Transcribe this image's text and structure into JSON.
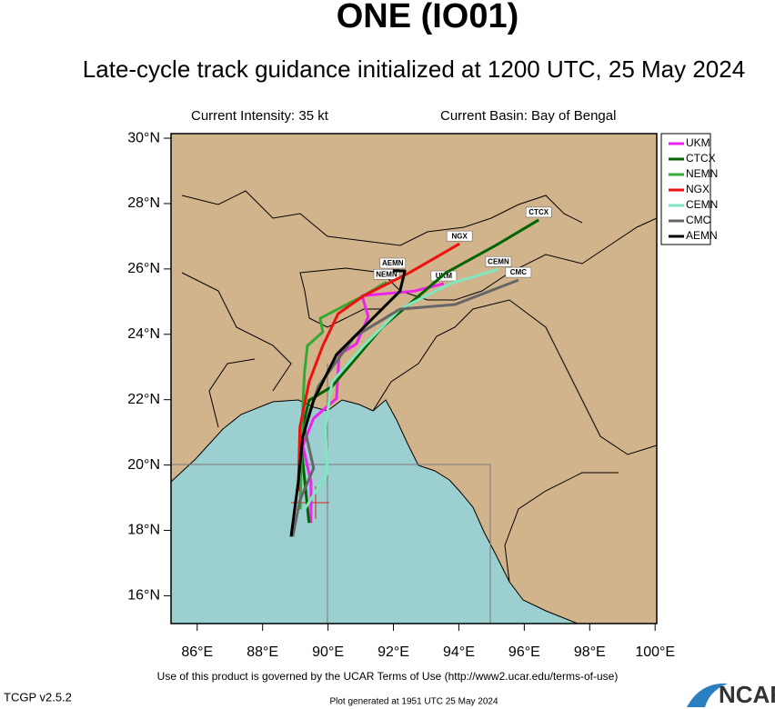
{
  "chart_data": {
    "type": "track",
    "title": "ONE (IO01)",
    "subtitle": "Late-cycle track guidance initialized at 1200 UTC, 25 May 2024",
    "intensity": "Current Intensity: 35 kt",
    "basin": "Current Basin: Bay of Bengal",
    "xlim": [
      85.2,
      100.05
    ],
    "ylim": [
      15.15,
      30.14
    ],
    "xticks": [
      {
        "value": 86,
        "label": "86°E"
      },
      {
        "value": 88,
        "label": "88°E"
      },
      {
        "value": 90,
        "label": "90°E"
      },
      {
        "value": 92,
        "label": "92°E"
      },
      {
        "value": 94,
        "label": "94°E"
      },
      {
        "value": 96,
        "label": "96°E"
      },
      {
        "value": 98,
        "label": "98°E"
      },
      {
        "value": 100,
        "label": "100°E"
      }
    ],
    "yticks": [
      {
        "value": 16,
        "label": "16°N"
      },
      {
        "value": 18,
        "label": "18°N"
      },
      {
        "value": 20,
        "label": "20°N"
      },
      {
        "value": 22,
        "label": "22°N"
      },
      {
        "value": 24,
        "label": "24°N"
      },
      {
        "value": 26,
        "label": "26°N"
      },
      {
        "value": 28,
        "label": "28°N"
      },
      {
        "value": 30,
        "label": "30°N"
      }
    ],
    "series": [
      {
        "name": "UKM",
        "color": "#ee22ee",
        "x": [
          89.48,
          89.48,
          89.23,
          89.56,
          90.26,
          90.34,
          90.87,
          91.23,
          91.04,
          92.62,
          93.54
        ],
        "values": [
          18.23,
          19.48,
          20.6,
          21.43,
          22.04,
          23.38,
          23.71,
          24.54,
          25.18,
          25.32,
          25.55
        ]
      },
      {
        "name": "CTCX",
        "color": "#006400",
        "x": [
          89.42,
          89.15,
          89.42,
          90.12,
          91.65,
          93.6,
          95.13,
          96.44
        ],
        "values": [
          18.23,
          20.87,
          21.98,
          22.4,
          24.21,
          25.88,
          26.72,
          27.5
        ]
      },
      {
        "name": "NEMN",
        "color": "#33aa33",
        "x": [
          89.15,
          89.2,
          89.28,
          89.37,
          89.84,
          89.76,
          91.09,
          91.79
        ],
        "values": [
          18.64,
          21.15,
          22.82,
          23.65,
          24.07,
          24.49,
          25.18,
          25.6
        ]
      },
      {
        "name": "NGX",
        "color": "#ee1111",
        "x": [
          89.09,
          89.14,
          89.42,
          89.84,
          90.31,
          91.09,
          92.48,
          94.02
        ],
        "values": [
          19.2,
          21.15,
          22.54,
          23.65,
          24.63,
          25.18,
          25.88,
          26.77
        ]
      },
      {
        "name": "CEMN",
        "color": "#7fe8c0",
        "x": [
          89.28,
          89.98,
          89.92,
          90.12,
          91.09,
          92.2,
          93.74,
          95.21
        ],
        "values": [
          18.64,
          19.76,
          21.15,
          22.54,
          23.65,
          24.77,
          25.55,
          25.99
        ]
      },
      {
        "name": "CMC",
        "color": "#666666",
        "x": [
          88.92,
          89.14,
          89.56,
          89.28,
          89.7,
          90.81,
          92.2,
          93.88,
          95.82
        ],
        "values": [
          17.81,
          18.92,
          19.9,
          21.15,
          22.4,
          23.93,
          24.77,
          24.91,
          25.66
        ]
      },
      {
        "name": "AEMN",
        "color": "#000000",
        "x": [
          88.87,
          89.09,
          89.23,
          89.56,
          90.26,
          91.09,
          92.2,
          92.35,
          91.98
        ],
        "values": [
          17.81,
          19.48,
          20.87,
          21.98,
          23.38,
          24.21,
          25.32,
          25.94,
          25.94
        ]
      }
    ]
  },
  "footer": {
    "terms": "Use of this product is governed by the UCAR Terms of Use (http://www2.ucar.edu/terms-of-use)",
    "version": "TCGP v2.5.2",
    "generated": "Plot generated at 1951 UTC  25 May 2024",
    "logo": "NCAR"
  }
}
